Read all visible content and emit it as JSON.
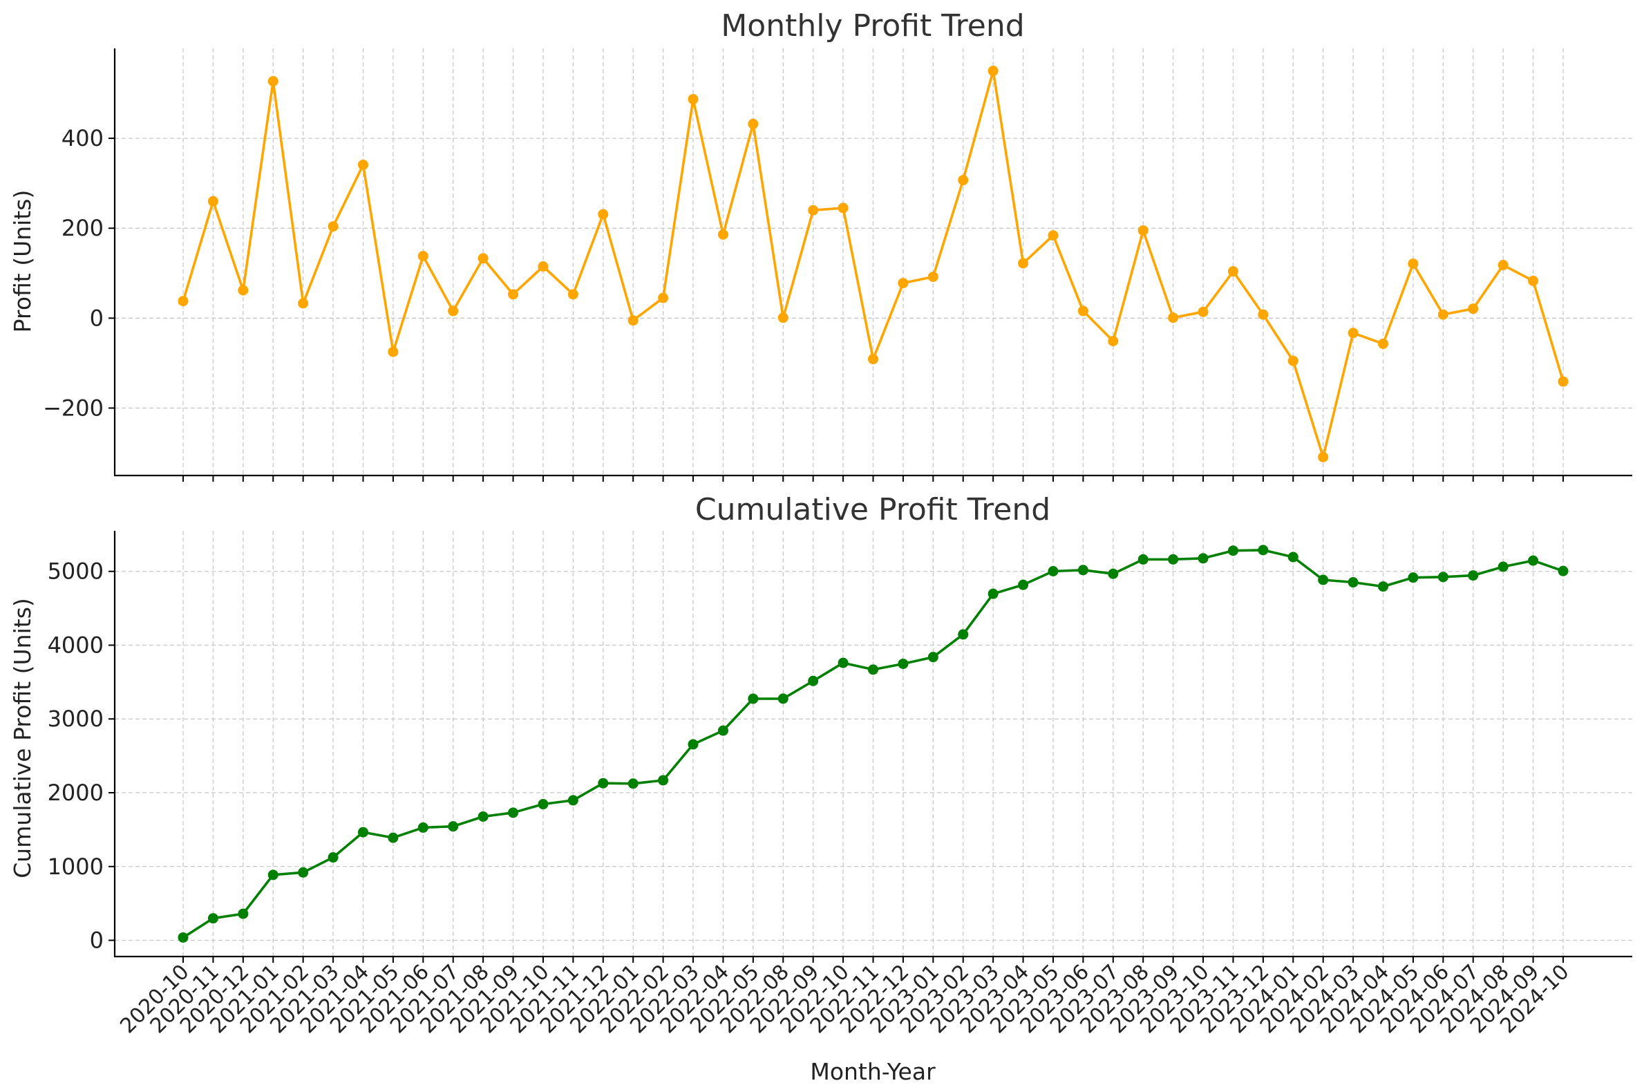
{
  "chart_data": [
    {
      "type": "line",
      "title": "Monthly Profit Trend",
      "xlabel": "",
      "ylabel": "Profit (Units)",
      "ylim": [
        -350,
        600
      ],
      "yticks": [
        -200,
        0,
        200,
        400
      ],
      "grid": true,
      "color": "#FFA500",
      "series": [
        {
          "values": [
            38,
            260,
            62,
            527,
            33,
            204,
            341,
            -75,
            138,
            16,
            133,
            53,
            115,
            53,
            231,
            -5,
            45,
            487,
            186,
            432,
            1,
            240,
            245,
            -91,
            78,
            92,
            307,
            550,
            122,
            184,
            16,
            -51,
            195,
            1,
            14,
            104,
            8,
            -95,
            -309,
            -33,
            -57,
            121,
            8,
            21,
            118,
            83,
            -141
          ]
        }
      ]
    },
    {
      "type": "line",
      "title": "Cumulative Profit Trend",
      "xlabel": "Month-Year",
      "ylabel": "Cumulative Profit (Units)",
      "ylim": [
        -220,
        5550
      ],
      "yticks": [
        0,
        1000,
        2000,
        3000,
        4000,
        5000
      ],
      "grid": true,
      "color": "#008000",
      "series": [
        {
          "values": [
            38,
            298,
            360,
            887,
            920,
            1124,
            1465,
            1390,
            1528,
            1544,
            1677,
            1730,
            1845,
            1898,
            2129,
            2124,
            2169,
            2656,
            2842,
            3274,
            3275,
            3515,
            3760,
            3669,
            3747,
            3839,
            4146,
            4696,
            4818,
            5002,
            5018,
            4967,
            5162,
            5163,
            5177,
            5281,
            5289,
            5194,
            4885,
            4852,
            4795,
            4916,
            4924,
            4945,
            5063,
            5146,
            5005
          ]
        }
      ]
    }
  ],
  "x_categories": [
    "2020-10",
    "2020-11",
    "2020-12",
    "2021-01",
    "2021-02",
    "2021-03",
    "2021-04",
    "2021-05",
    "2021-06",
    "2021-07",
    "2021-08",
    "2021-09",
    "2021-10",
    "2021-11",
    "2021-12",
    "2022-01",
    "2022-02",
    "2022-03",
    "2022-04",
    "2022-05",
    "2022-08",
    "2022-09",
    "2022-10",
    "2022-11",
    "2022-12",
    "2023-01",
    "2023-02",
    "2023-03",
    "2023-04",
    "2023-05",
    "2023-06",
    "2023-07",
    "2023-08",
    "2023-09",
    "2023-10",
    "2023-11",
    "2023-12",
    "2024-01",
    "2024-02",
    "2024-03",
    "2024-04",
    "2024-05",
    "2024-06",
    "2024-07",
    "2024-08",
    "2024-09",
    "2024-10"
  ]
}
